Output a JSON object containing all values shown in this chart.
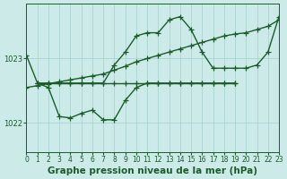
{
  "bg_color": "#cceae7",
  "grid_color": "#aad4d0",
  "line_color": "#1a5c2a",
  "title": "Graphe pression niveau de la mer (hPa)",
  "xlim": [
    0,
    23
  ],
  "ylim": [
    1021.55,
    1023.85
  ],
  "yticks": [
    1022.0,
    1023.0
  ],
  "xticks": [
    0,
    1,
    2,
    3,
    4,
    5,
    6,
    7,
    8,
    9,
    10,
    11,
    12,
    13,
    14,
    15,
    16,
    17,
    18,
    19,
    20,
    21,
    22,
    23
  ],
  "series": [
    {
      "x": [
        0,
        1,
        2,
        3,
        4,
        5,
        6,
        7,
        8,
        9,
        10,
        11,
        12,
        13,
        14,
        15,
        16,
        17,
        18,
        19,
        20,
        21,
        22,
        23
      ],
      "y": [
        1023.05,
        1022.62,
        1022.62,
        1022.62,
        1022.62,
        1022.62,
        1022.62,
        1022.62,
        1022.9,
        1023.1,
        1023.35,
        1023.4,
        1023.4,
        1023.6,
        1023.65,
        1023.45,
        1023.1,
        1022.85,
        1022.85,
        1022.85,
        1022.85,
        1022.9,
        1023.1,
        1023.65
      ]
    },
    {
      "x": [
        0,
        1,
        2,
        3,
        4,
        5,
        6,
        7,
        8,
        9,
        10,
        11,
        12,
        13,
        14,
        15,
        16,
        17,
        18,
        19,
        20,
        21,
        22,
        23
      ],
      "y": [
        1022.55,
        1022.58,
        1022.61,
        1022.64,
        1022.67,
        1022.7,
        1022.73,
        1022.76,
        1022.82,
        1022.88,
        1022.95,
        1023.0,
        1023.05,
        1023.1,
        1023.15,
        1023.2,
        1023.25,
        1023.3,
        1023.35,
        1023.38,
        1023.4,
        1023.45,
        1023.5,
        1023.6
      ]
    },
    {
      "x": [
        1,
        2,
        3,
        4,
        5,
        6,
        7,
        8,
        9,
        10,
        11,
        12,
        13,
        14,
        15,
        16,
        17,
        18,
        19
      ],
      "y": [
        1022.62,
        1022.62,
        1022.62,
        1022.62,
        1022.62,
        1022.62,
        1022.62,
        1022.62,
        1022.62,
        1022.62,
        1022.62,
        1022.62,
        1022.62,
        1022.62,
        1022.62,
        1022.62,
        1022.62,
        1022.62,
        1022.62
      ]
    },
    {
      "x": [
        1,
        2,
        3,
        4,
        5,
        6,
        7,
        8,
        9,
        10,
        11,
        12,
        13,
        14,
        15,
        16,
        17,
        18,
        19
      ],
      "y": [
        1022.62,
        1022.55,
        1022.1,
        1022.08,
        1022.15,
        1022.2,
        1022.05,
        1022.05,
        1022.35,
        1022.55,
        1022.62,
        1022.62,
        1022.62,
        1022.62,
        1022.62,
        1022.62,
        1022.62,
        1022.62,
        1022.62
      ]
    }
  ],
  "marker": "+",
  "markersize": 4,
  "linewidth": 1.0,
  "title_fontsize": 7.5,
  "tick_fontsize": 5.5
}
